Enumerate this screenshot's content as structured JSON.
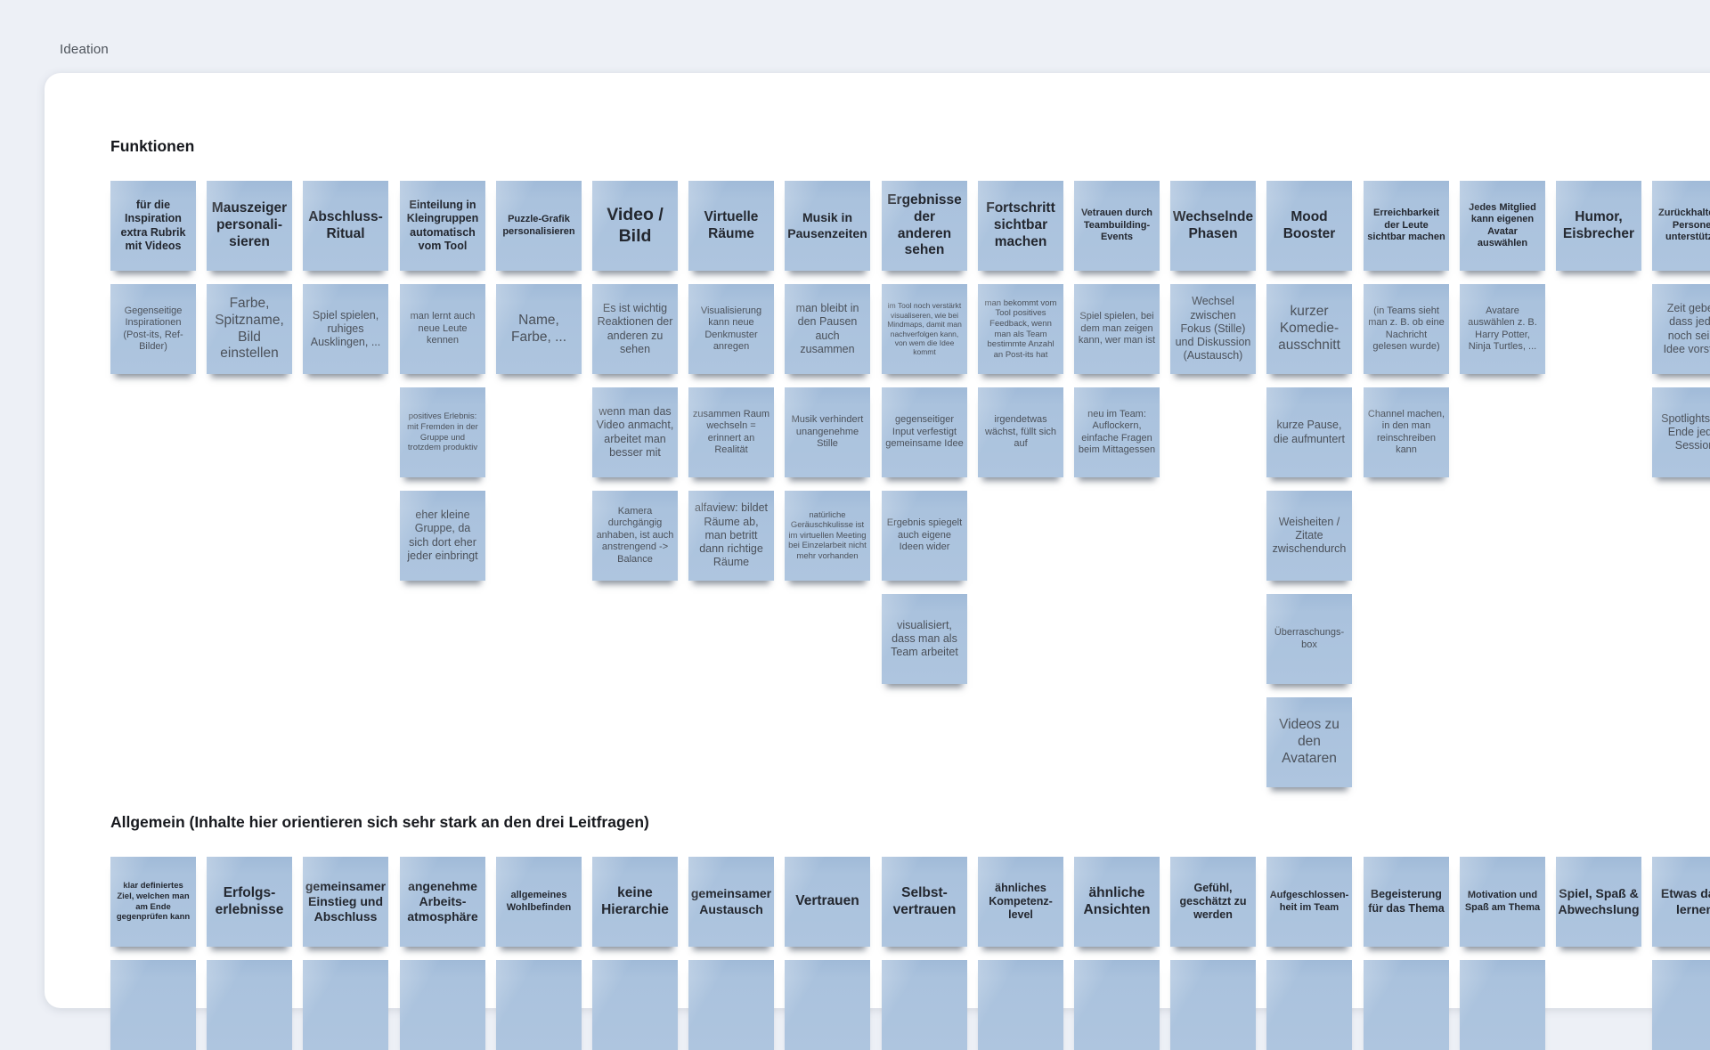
{
  "page": {
    "frame_label": "Ideation",
    "background": "#edf0f6",
    "card_background": "#ffffff"
  },
  "note_style": {
    "fill": "#aac2dd",
    "bold_text_color": "#23272f",
    "text_color": "#4b515a"
  },
  "sections": [
    {
      "id": "funktionen",
      "heading": "Funktionen",
      "columns": [
        {
          "notes": [
            {
              "text": "für die Inspiration extra Rubrik mit Videos",
              "bold": true,
              "size": "m"
            },
            {
              "text": "Gegenseitige Inspirationen (Post-its, Ref-Bilder)",
              "bold": false,
              "size": "s"
            }
          ]
        },
        {
          "notes": [
            {
              "text": "Mauszeiger personali- sieren",
              "bold": true,
              "size": "l"
            },
            {
              "text": "Farbe, Spitzname, Bild einstellen",
              "bold": false,
              "size": "l"
            }
          ]
        },
        {
          "notes": [
            {
              "text": "Abschluss- Ritual",
              "bold": true,
              "size": "l"
            },
            {
              "text": "Spiel spielen, ruhiges Ausklingen, ...",
              "bold": false,
              "size": "m"
            }
          ]
        },
        {
          "notes": [
            {
              "text": "Einteilung in Kleingruppen automatisch vom Tool",
              "bold": true,
              "size": "m"
            },
            {
              "text": "man lernt auch neue Leute kennen",
              "bold": false,
              "size": "s"
            },
            {
              "text": "positives Erlebnis: mit Fremden in der Gruppe und trotzdem produktiv",
              "bold": false,
              "size": "xs"
            },
            {
              "text": "eher kleine Gruppe, da sich dort eher jeder einbringt",
              "bold": false,
              "size": "m"
            }
          ]
        },
        {
          "notes": [
            {
              "text": "Puzzle-Grafik personalisieren",
              "bold": true,
              "size": "s"
            },
            {
              "text": "Name, Farbe, ...",
              "bold": false,
              "size": "l"
            }
          ]
        },
        {
          "notes": [
            {
              "text": "Video / Bild",
              "bold": true,
              "size": "xl"
            },
            {
              "text": "Es ist wichtig Reaktionen der anderen zu sehen",
              "bold": false,
              "size": "m"
            },
            {
              "text": "wenn man das Video anmacht, arbeitet man besser mit",
              "bold": false,
              "size": "m"
            },
            {
              "text": "Kamera durchgängig anhaben, ist auch anstrengend -> Balance",
              "bold": false,
              "size": "s"
            }
          ]
        },
        {
          "notes": [
            {
              "text": "Virtuelle Räume",
              "bold": true,
              "size": "l"
            },
            {
              "text": "Visualisierung kann neue Denkmuster anregen",
              "bold": false,
              "size": "s"
            },
            {
              "text": "zusammen Raum wechseln = erinnert an Realität",
              "bold": false,
              "size": "s"
            },
            {
              "text": "alfaview: bildet Räume ab, man betritt dann richtige Räume",
              "bold": false,
              "size": "m"
            }
          ]
        },
        {
          "notes": [
            {
              "text": "Musik in Pausenzeiten",
              "bold": true,
              "size": "ml"
            },
            {
              "text": "man bleibt in den Pausen auch zusammen",
              "bold": false,
              "size": "m"
            },
            {
              "text": "Musik verhindert unangenehme Stille",
              "bold": false,
              "size": "s"
            },
            {
              "text": "natürliche Geräuschkulisse ist im virtuellen Meeting bei Einzelarbeit nicht mehr vorhanden",
              "bold": false,
              "size": "xs"
            }
          ]
        },
        {
          "notes": [
            {
              "text": "Ergebnisse der anderen sehen",
              "bold": true,
              "size": "l"
            },
            {
              "text": "im Tool noch verstärkt visualiseren, wie bei Mindmaps, damit man nachverfolgen kann, von wem die Idee kommt",
              "bold": false,
              "size": "xxs"
            },
            {
              "text": "gegenseitiger Input verfestigt gemeinsame Idee",
              "bold": false,
              "size": "s"
            },
            {
              "text": "Ergebnis spiegelt auch eigene Ideen wider",
              "bold": false,
              "size": "s"
            },
            {
              "text": "visualisiert, dass man als Team arbeitet",
              "bold": false,
              "size": "m"
            }
          ]
        },
        {
          "notes": [
            {
              "text": "Fortschritt sichtbar machen",
              "bold": true,
              "size": "l"
            },
            {
              "text": "man bekommt vom Tool positives Feedback, wenn man als Team bestimmte Anzahl an Post-its hat",
              "bold": false,
              "size": "xs"
            },
            {
              "text": "irgendetwas wächst, füllt sich auf",
              "bold": false,
              "size": "s"
            }
          ]
        },
        {
          "notes": [
            {
              "text": "Vetrauen durch Teambuilding- Events",
              "bold": true,
              "size": "s"
            },
            {
              "text": "Spiel spielen, bei dem man zeigen kann, wer man ist",
              "bold": false,
              "size": "s"
            },
            {
              "text": "neu im Team: Auflockern, einfache Fragen beim Mittagessen",
              "bold": false,
              "size": "s"
            }
          ]
        },
        {
          "notes": [
            {
              "text": "Wechselnde Phasen",
              "bold": true,
              "size": "l"
            },
            {
              "text": "Wechsel zwischen Fokus (Stille) und Diskussion (Austausch)",
              "bold": false,
              "size": "m"
            }
          ]
        },
        {
          "notes": [
            {
              "text": "Mood Booster",
              "bold": true,
              "size": "l"
            },
            {
              "text": "kurzer Komedie- ausschnitt",
              "bold": false,
              "size": "l"
            },
            {
              "text": "kurze Pause, die aufmuntert",
              "bold": false,
              "size": "m"
            },
            {
              "text": "Weisheiten / Zitate zwischendurch",
              "bold": false,
              "size": "m"
            },
            {
              "text": "Überraschungs- box",
              "bold": false,
              "size": "s"
            },
            {
              "text": "Videos zu den Avataren",
              "bold": false,
              "size": "l"
            }
          ]
        },
        {
          "notes": [
            {
              "text": "Erreichbarkeit der Leute sichtbar machen",
              "bold": true,
              "size": "s"
            },
            {
              "text": "(in Teams sieht man z. B. ob eine Nachricht gelesen wurde)",
              "bold": false,
              "size": "s"
            },
            {
              "text": "Channel machen, in den man reinschreiben kann",
              "bold": false,
              "size": "s"
            }
          ]
        },
        {
          "notes": [
            {
              "text": "Jedes Mitglied kann eigenen Avatar auswählen",
              "bold": true,
              "size": "s"
            },
            {
              "text": "Avatare auswählen z. B. Harry Potter, Ninja Turtles, ...",
              "bold": false,
              "size": "s"
            }
          ]
        },
        {
          "notes": [
            {
              "text": "Humor, Eisbrecher",
              "bold": true,
              "size": "l"
            }
          ]
        },
        {
          "notes": [
            {
              "text": "Zurückhaltende Personen unterstützen",
              "bold": true,
              "size": "s"
            },
            {
              "text": "Zeit geben, dass jeder noch seine Idee vorstellt",
              "bold": false,
              "size": "m"
            },
            {
              "text": "Spotlights am Ende jeder Session",
              "bold": false,
              "size": "m"
            }
          ]
        }
      ]
    },
    {
      "id": "allgemein",
      "heading": "Allgemein (Inhalte hier orientieren sich sehr stark an den drei Leitfragen)",
      "columns": [
        {
          "notes": [
            {
              "text": "klar definiertes Ziel, welchen man am Ende gegenprüfen kann",
              "bold": true,
              "size": "xs"
            },
            {
              "text": "",
              "bold": false,
              "size": "m"
            }
          ]
        },
        {
          "notes": [
            {
              "text": "Erfolgs- erlebnisse",
              "bold": true,
              "size": "l"
            },
            {
              "text": "",
              "bold": false,
              "size": "m"
            }
          ]
        },
        {
          "notes": [
            {
              "text": "gemeinsamer Einstieg und Abschluss",
              "bold": true,
              "size": "ml"
            },
            {
              "text": "",
              "bold": false,
              "size": "m"
            }
          ]
        },
        {
          "notes": [
            {
              "text": "angenehme Arbeits- atmosphäre",
              "bold": true,
              "size": "ml"
            },
            {
              "text": "",
              "bold": false,
              "size": "m"
            }
          ]
        },
        {
          "notes": [
            {
              "text": "allgemeines Wohlbefinden",
              "bold": true,
              "size": "s"
            },
            {
              "text": "",
              "bold": false,
              "size": "m"
            }
          ]
        },
        {
          "notes": [
            {
              "text": "keine Hierarchie",
              "bold": true,
              "size": "l"
            },
            {
              "text": "",
              "bold": false,
              "size": "m"
            }
          ]
        },
        {
          "notes": [
            {
              "text": "gemeinsamer Austausch",
              "bold": true,
              "size": "ml"
            },
            {
              "text": "",
              "bold": false,
              "size": "m"
            }
          ]
        },
        {
          "notes": [
            {
              "text": "Vertrauen",
              "bold": true,
              "size": "l"
            },
            {
              "text": "",
              "bold": false,
              "size": "m"
            }
          ]
        },
        {
          "notes": [
            {
              "text": "Selbst- vertrauen",
              "bold": true,
              "size": "l"
            },
            {
              "text": "",
              "bold": false,
              "size": "m"
            }
          ]
        },
        {
          "notes": [
            {
              "text": "ähnliches Kompetenz- level",
              "bold": true,
              "size": "m"
            },
            {
              "text": "",
              "bold": false,
              "size": "m"
            }
          ]
        },
        {
          "notes": [
            {
              "text": "ähnliche Ansichten",
              "bold": true,
              "size": "l"
            },
            {
              "text": "",
              "bold": false,
              "size": "m"
            }
          ]
        },
        {
          "notes": [
            {
              "text": "Gefühl, geschätzt zu werden",
              "bold": true,
              "size": "m"
            },
            {
              "text": "",
              "bold": false,
              "size": "m"
            }
          ]
        },
        {
          "notes": [
            {
              "text": "Aufgeschlossen- heit im Team",
              "bold": true,
              "size": "s"
            },
            {
              "text": "",
              "bold": false,
              "size": "m"
            }
          ]
        },
        {
          "notes": [
            {
              "text": "Begeisterung für das Thema",
              "bold": true,
              "size": "m"
            },
            {
              "text": "",
              "bold": false,
              "size": "m"
            }
          ]
        },
        {
          "notes": [
            {
              "text": "Motivation und Spaß am Thema",
              "bold": true,
              "size": "s"
            },
            {
              "text": "",
              "bold": false,
              "size": "m"
            }
          ]
        },
        {
          "notes": [
            {
              "text": "Spiel, Spaß & Abwechslung",
              "bold": true,
              "size": "ml"
            }
          ]
        },
        {
          "notes": [
            {
              "text": "Etwas dazu lernen",
              "bold": true,
              "size": "ml"
            },
            {
              "text": "",
              "bold": false,
              "size": "m"
            }
          ]
        }
      ]
    }
  ]
}
